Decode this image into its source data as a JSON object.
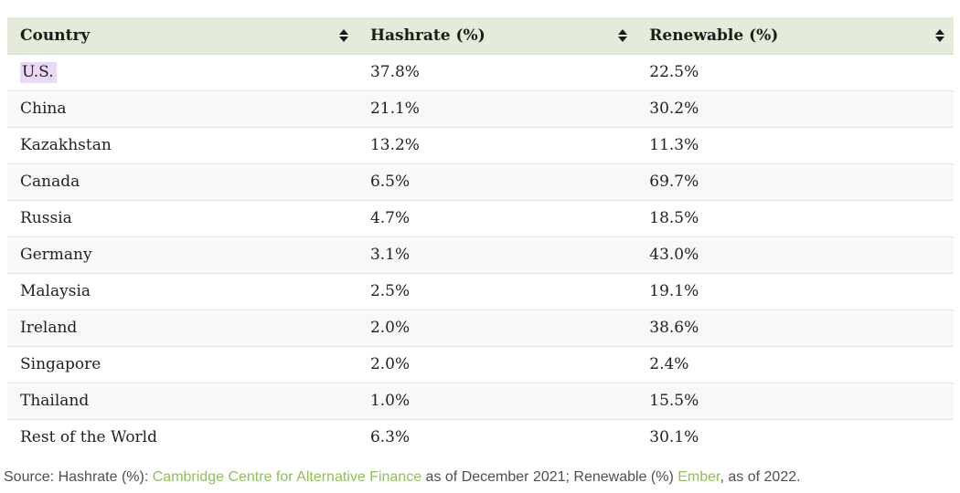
{
  "table": {
    "columns": [
      {
        "label": "Country",
        "sort_icon": "up-down-sort-arrows"
      },
      {
        "label": "Hashrate (%)",
        "sort_icon": "up-down-sort-arrows"
      },
      {
        "label": "Renewable (%)",
        "sort_icon": "up-down-sort-arrows"
      }
    ],
    "rows": [
      {
        "country": "U.S.",
        "hashrate": "37.8%",
        "renewable": "22.5%",
        "country_highlighted": true
      },
      {
        "country": "China",
        "hashrate": "21.1%",
        "renewable": "30.2%"
      },
      {
        "country": "Kazakhstan",
        "hashrate": "13.2%",
        "renewable": "11.3%"
      },
      {
        "country": "Canada",
        "hashrate": "6.5%",
        "renewable": "69.7%"
      },
      {
        "country": "Russia",
        "hashrate": "4.7%",
        "renewable": "18.5%"
      },
      {
        "country": "Germany",
        "hashrate": "3.1%",
        "renewable": "43.0%"
      },
      {
        "country": "Malaysia",
        "hashrate": "2.5%",
        "renewable": "19.1%"
      },
      {
        "country": "Ireland",
        "hashrate": "2.0%",
        "renewable": "38.6%"
      },
      {
        "country": "Singapore",
        "hashrate": "2.0%",
        "renewable": "2.4%"
      },
      {
        "country": "Thailand",
        "hashrate": "1.0%",
        "renewable": "15.5%"
      },
      {
        "country": "Rest of the World",
        "hashrate": "6.3%",
        "renewable": "30.1%"
      }
    ]
  },
  "source_line": {
    "segments": [
      {
        "text": "Source: Hashrate (%): ",
        "link": false
      },
      {
        "text": "Cambridge Centre for Alternative Finance",
        "link": true
      },
      {
        "text": " as of December 2021; Renewable (%) ",
        "link": false
      },
      {
        "text": "Ember",
        "link": true
      },
      {
        "text": ", as of 2022.",
        "link": false
      }
    ]
  },
  "colors": {
    "header_bg": "#e4ecd9",
    "alt_row_bg": "#f8f8f8",
    "row_border": "#e3e3e3",
    "selection_highlight": "#e9d9f7",
    "link_green": "#8fc158",
    "body_text": "#212121",
    "source_text": "#4f4f4f"
  },
  "chart_data": {
    "type": "table",
    "title": "",
    "columns": [
      "Country",
      "Hashrate (%)",
      "Renewable (%)"
    ],
    "rows": [
      [
        "U.S.",
        37.8,
        22.5
      ],
      [
        "China",
        21.1,
        30.2
      ],
      [
        "Kazakhstan",
        13.2,
        11.3
      ],
      [
        "Canada",
        6.5,
        69.7
      ],
      [
        "Russia",
        4.7,
        18.5
      ],
      [
        "Germany",
        3.1,
        43.0
      ],
      [
        "Malaysia",
        2.5,
        19.1
      ],
      [
        "Ireland",
        2.0,
        38.6
      ],
      [
        "Singapore",
        2.0,
        2.4
      ],
      [
        "Thailand",
        1.0,
        15.5
      ],
      [
        "Rest of the World",
        6.3,
        30.1
      ]
    ],
    "notes": "Sortable table; sources: Cambridge Centre for Alternative Finance (Dec 2021), Ember (2022)"
  }
}
